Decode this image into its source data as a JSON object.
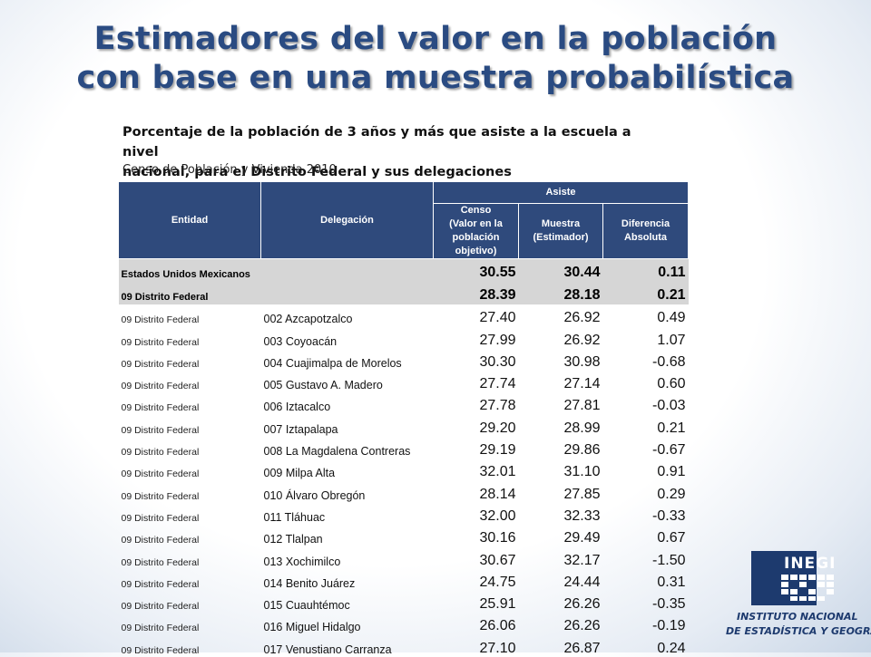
{
  "title": {
    "line1": "Estimadores del valor en la población",
    "line2": "con base en una muestra probabilística"
  },
  "subtitle": {
    "line1": "Porcentaje de la población de 3 años y más que asiste a la escuela a nivel",
    "line2": "nacional, para el Distrito Federal y sus delegaciones"
  },
  "source": "Censo de Población y Vivienda 2010",
  "table": {
    "headers": {
      "entidad": "Entidad",
      "delegacion": "Delegación",
      "asiste": "Asiste",
      "censo_line1": "Censo",
      "censo_line2": "(Valor en la",
      "censo_line3": "población objetivo)",
      "muestra_line1": "Muestra",
      "muestra_line2": "(Estimador)",
      "diferencia_line1": "Diferencia",
      "diferencia_line2": "Absoluta"
    },
    "summary": [
      {
        "name": "Estados Unidos Mexicanos",
        "censo": "30.55",
        "muestra": "30.44",
        "diferencia": "0.11"
      },
      {
        "name": "09 Distrito Federal",
        "censo": "28.39",
        "muestra": "28.18",
        "diferencia": "0.21"
      }
    ],
    "rows": [
      {
        "entidad": "09 Distrito Federal",
        "delegacion": "002 Azcapotzalco",
        "censo": "27.40",
        "muestra": "26.92",
        "diferencia": "0.49"
      },
      {
        "entidad": "09 Distrito Federal",
        "delegacion": "003 Coyoacán",
        "censo": "27.99",
        "muestra": "26.92",
        "diferencia": "1.07"
      },
      {
        "entidad": "09 Distrito Federal",
        "delegacion": "004 Cuajimalpa de Morelos",
        "censo": "30.30",
        "muestra": "30.98",
        "diferencia": "-0.68"
      },
      {
        "entidad": "09 Distrito Federal",
        "delegacion": "005 Gustavo A. Madero",
        "censo": "27.74",
        "muestra": "27.14",
        "diferencia": "0.60"
      },
      {
        "entidad": "09 Distrito Federal",
        "delegacion": "006 Iztacalco",
        "censo": "27.78",
        "muestra": "27.81",
        "diferencia": "-0.03"
      },
      {
        "entidad": "09 Distrito Federal",
        "delegacion": "007 Iztapalapa",
        "censo": "29.20",
        "muestra": "28.99",
        "diferencia": "0.21"
      },
      {
        "entidad": "09 Distrito Federal",
        "delegacion": "008 La Magdalena Contreras",
        "censo": "29.19",
        "muestra": "29.86",
        "diferencia": "-0.67"
      },
      {
        "entidad": "09 Distrito Federal",
        "delegacion": "009 Milpa Alta",
        "censo": "32.01",
        "muestra": "31.10",
        "diferencia": "0.91"
      },
      {
        "entidad": "09 Distrito Federal",
        "delegacion": "010 Álvaro Obregón",
        "censo": "28.14",
        "muestra": "27.85",
        "diferencia": "0.29"
      },
      {
        "entidad": "09 Distrito Federal",
        "delegacion": "011 Tláhuac",
        "censo": "32.00",
        "muestra": "32.33",
        "diferencia": "-0.33"
      },
      {
        "entidad": "09 Distrito Federal",
        "delegacion": "012 Tlalpan",
        "censo": "30.16",
        "muestra": "29.49",
        "diferencia": "0.67"
      },
      {
        "entidad": "09 Distrito Federal",
        "delegacion": "013 Xochimilco",
        "censo": "30.67",
        "muestra": "32.17",
        "diferencia": "-1.50"
      },
      {
        "entidad": "09 Distrito Federal",
        "delegacion": "014 Benito Juárez",
        "censo": "24.75",
        "muestra": "24.44",
        "diferencia": "0.31"
      },
      {
        "entidad": "09 Distrito Federal",
        "delegacion": "015 Cuauhtémoc",
        "censo": "25.91",
        "muestra": "26.26",
        "diferencia": "-0.35"
      },
      {
        "entidad": "09 Distrito Federal",
        "delegacion": "016 Miguel Hidalgo",
        "censo": "26.06",
        "muestra": "26.26",
        "diferencia": "-0.19"
      },
      {
        "entidad": "09 Distrito Federal",
        "delegacion": "017 Venustiano Carranza",
        "censo": "27.10",
        "muestra": "26.87",
        "diferencia": "0.24"
      }
    ]
  },
  "logo": {
    "acronym": "INEGI",
    "name_line1": "INSTITUTO NACIONAL",
    "name_line2": "DE ESTADÍSTICA Y GEOGRAFÍA",
    "color": "#1d3a6e"
  },
  "colors": {
    "title": "#2a4b82",
    "header_bg": "#2f4a7c",
    "summary_bg": "#d6d6d6"
  }
}
